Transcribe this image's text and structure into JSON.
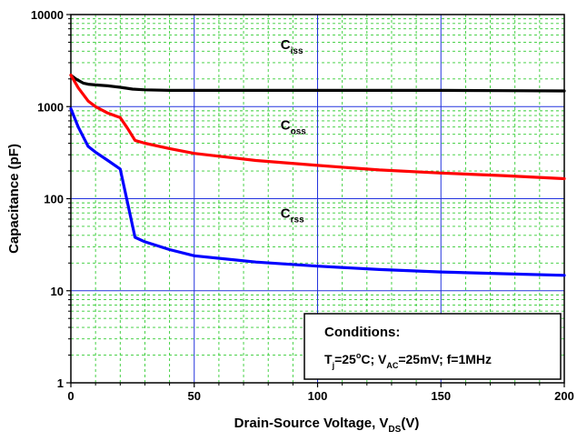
{
  "chart_data": {
    "type": "line",
    "xlabel": {
      "main": "Drain-Source Voltage, V",
      "sub": "DS",
      "suffix": "(V)"
    },
    "ylabel": "Capacitance (pF)",
    "xlim": [
      0,
      200
    ],
    "ylim": [
      1,
      10000
    ],
    "yscale": "log",
    "grid": true,
    "x_ticks": [
      0,
      50,
      100,
      150,
      200
    ],
    "x_tick_labels": [
      "0",
      "50",
      "100",
      "150",
      "200"
    ],
    "y_ticks": [
      1,
      10,
      100,
      1000,
      10000
    ],
    "y_tick_labels": [
      "1",
      "10",
      "100",
      "1000",
      "10000"
    ],
    "series": [
      {
        "name": "Ciss",
        "label_main": "C",
        "label_sub": "iss",
        "color": "#000000",
        "label_at": [
          85,
          4200
        ],
        "x": [
          0,
          2,
          5,
          7,
          10,
          15,
          20,
          25,
          30,
          40,
          50,
          75,
          100,
          125,
          150,
          175,
          200
        ],
        "y": [
          2200,
          2000,
          1800,
          1750,
          1720,
          1680,
          1620,
          1550,
          1520,
          1500,
          1500,
          1500,
          1500,
          1500,
          1500,
          1490,
          1480
        ]
      },
      {
        "name": "Coss",
        "label_main": "C",
        "label_sub": "oss",
        "color": "#ff0000",
        "label_at": [
          85,
          560
        ],
        "x": [
          0,
          3,
          7,
          10,
          15,
          20,
          23,
          26,
          30,
          40,
          50,
          75,
          100,
          125,
          150,
          175,
          200
        ],
        "y": [
          2200,
          1600,
          1150,
          1000,
          850,
          760,
          580,
          430,
          400,
          350,
          310,
          260,
          230,
          205,
          190,
          178,
          165
        ]
      },
      {
        "name": "Crss",
        "label_main": "C",
        "label_sub": "rss",
        "color": "#0000ff",
        "label_at": [
          85,
          62
        ],
        "x": [
          0,
          3,
          7,
          10,
          15,
          20,
          23,
          26,
          30,
          40,
          50,
          75,
          100,
          125,
          150,
          175,
          200
        ],
        "y": [
          950,
          600,
          370,
          320,
          260,
          210,
          90,
          38,
          34,
          28,
          24,
          20.5,
          18.5,
          17,
          16,
          15.3,
          14.7
        ]
      }
    ],
    "conditions": {
      "title": "Conditions:",
      "line": [
        {
          "text": "T",
          "sub": false
        },
        {
          "text": "j",
          "sub": true
        },
        {
          "text": "=25",
          "sub": false
        },
        {
          "text": "o",
          "sup": true
        },
        {
          "text": "C; V",
          "sub": false
        },
        {
          "text": "AC",
          "sub": true
        },
        {
          "text": "=25mV; f=1MHz",
          "sub": false
        }
      ]
    }
  }
}
